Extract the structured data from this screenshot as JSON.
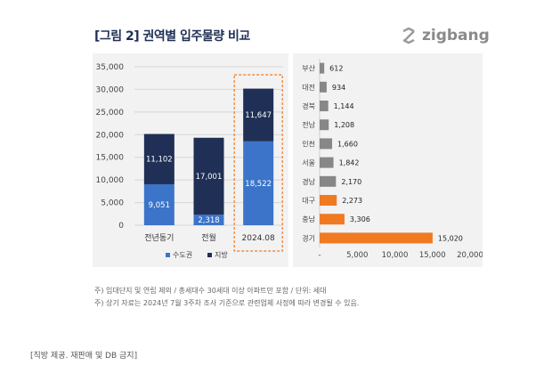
{
  "title": "[그림 2] 권역별 입주물량 비교",
  "logo": {
    "text": "zigbang",
    "icon": "zigbang-logo-icon"
  },
  "colors": {
    "capital": "#3b74c9",
    "local": "#1f2f55",
    "bar_gray": "#878787",
    "bar_orange": "#f07a22",
    "highlight_border": "#f07a22",
    "panel_bg": "#f2f2f2"
  },
  "chart_data": [
    {
      "type": "bar",
      "stacked": true,
      "categories": [
        "전년동기",
        "전월",
        "2024.08"
      ],
      "series": [
        {
          "name": "수도권",
          "values": [
            9051,
            2318,
            18522
          ],
          "color": "#3b74c9"
        },
        {
          "name": "지방",
          "values": [
            11102,
            17001,
            11647
          ],
          "color": "#1f2f55"
        }
      ],
      "ylim": [
        0,
        35000
      ],
      "yticks": [
        "35,000",
        "30,000",
        "25,000",
        "20,000",
        "15,000",
        "10,000",
        "5,000",
        "0"
      ],
      "ytick_values": [
        35000,
        30000,
        25000,
        20000,
        15000,
        10000,
        5000,
        0
      ],
      "data_labels": [
        [
          "9,051",
          "2,318",
          "18,522"
        ],
        [
          "11,102",
          "17,001",
          "11,647"
        ]
      ],
      "highlight_category": "2024.08",
      "legend_position": "bottom",
      "grid": true
    },
    {
      "type": "bar",
      "orientation": "horizontal",
      "categories": [
        "부산",
        "대전",
        "경북",
        "전남",
        "인천",
        "서울",
        "경남",
        "대구",
        "충남",
        "경기"
      ],
      "values": [
        612,
        934,
        1144,
        1208,
        1660,
        1842,
        2170,
        2273,
        3306,
        15020
      ],
      "value_labels": [
        "612",
        "934",
        "1,144",
        "1,208",
        "1,660",
        "1,842",
        "2,170",
        "2,273",
        "3,306",
        "15,020"
      ],
      "colors": [
        "#878787",
        "#878787",
        "#878787",
        "#878787",
        "#878787",
        "#878787",
        "#878787",
        "#f07a22",
        "#f07a22",
        "#f07a22"
      ],
      "xlim": [
        0,
        20000
      ],
      "xticks": [
        "-",
        "5,000",
        "10,000",
        "15,000",
        "20,000"
      ],
      "xtick_values": [
        0,
        5000,
        10000,
        15000,
        20000
      ],
      "grid": false
    }
  ],
  "footnotes": [
    "주) 임대단지 및 연립 제외 / 총세대수 30세대 이상 아파트만 포함 / 단위: 세대",
    "주) 상기 자료는 2024년 7월 3주차 조사 기준으로 관련업체 사정에 따라 변경될 수 있음."
  ],
  "source": "[직방 제공. 재판매 및 DB 금지]"
}
